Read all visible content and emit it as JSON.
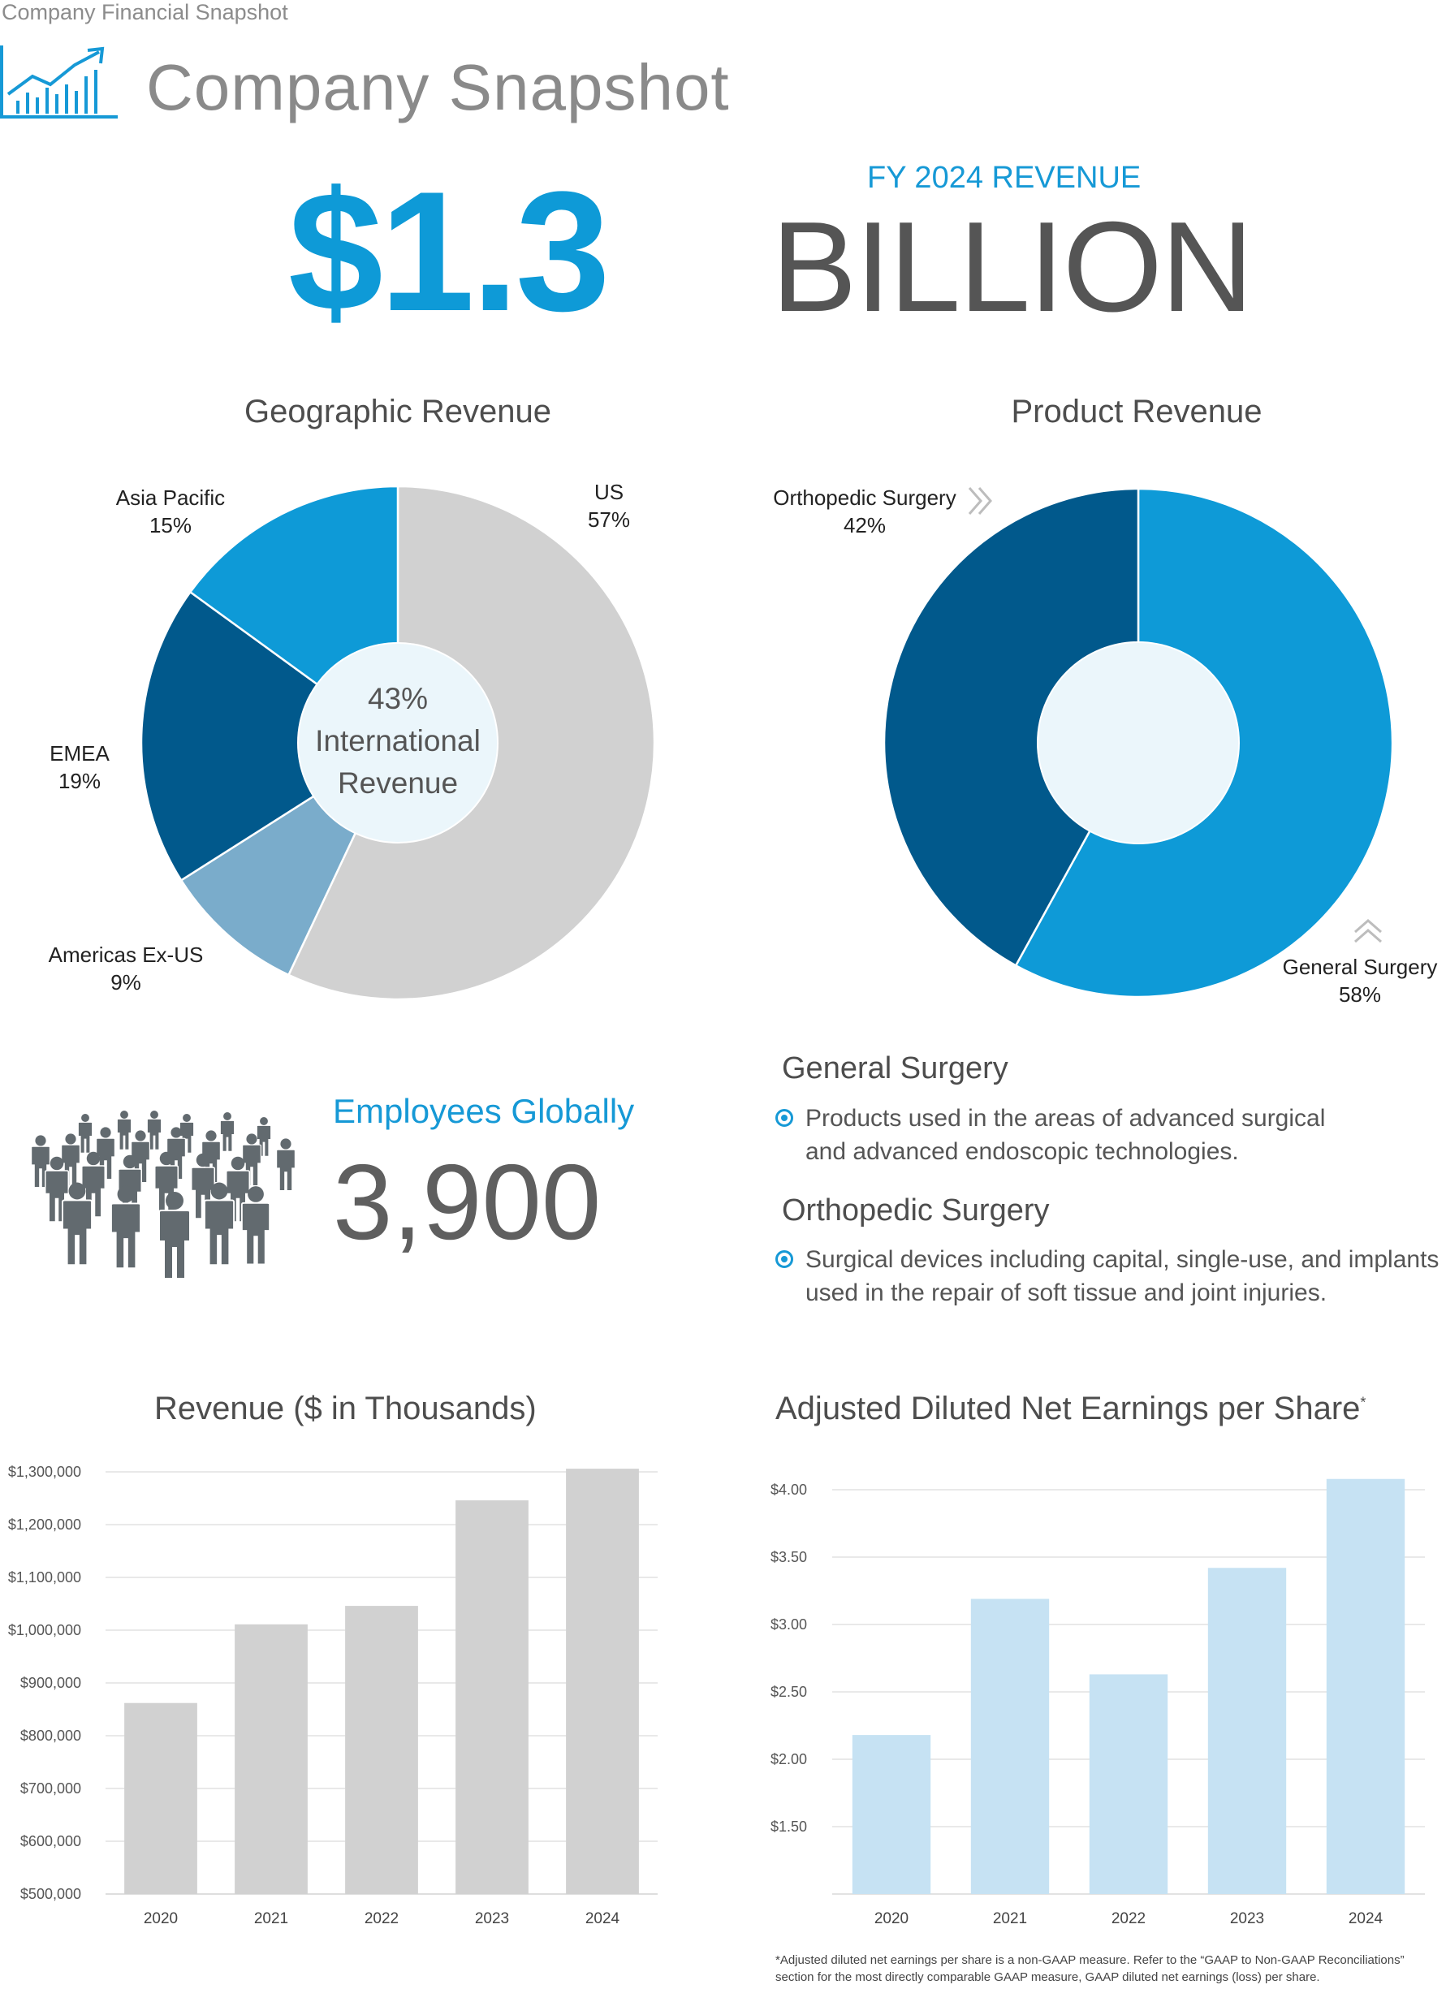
{
  "header": {
    "top_label": "Company Financial Snapshot",
    "title": "Company Snapshot",
    "icon": "bar-chart-trend-icon"
  },
  "headline": {
    "label": "FY 2024 REVENUE",
    "amount": "$1.3",
    "unit": "BILLION"
  },
  "colors": {
    "accent": "#0e9ad7",
    "dark_blue": "#01598c",
    "mid_blue": "#7aaccb",
    "gray": "#d1d1d1",
    "light_blue": "#c6e2f3",
    "center_fill": "#ebf6fb"
  },
  "employees": {
    "label": "Employees Globally",
    "value": "3,900",
    "icon": "people-group-icon"
  },
  "segments": [
    {
      "heading": "General Surgery",
      "lines": [
        "Products used in the areas of advanced surgical",
        "and advanced endoscopic technologies."
      ]
    },
    {
      "heading": "Orthopedic Surgery",
      "lines": [
        "Surgical devices including capital, single-use, and implants",
        "used in the repair of soft tissue and joint injuries."
      ]
    }
  ],
  "chart_data": [
    {
      "type": "pie",
      "title": "Geographic Revenue",
      "center_text": [
        "43%",
        "International",
        "Revenue"
      ],
      "slices": [
        {
          "name": "US",
          "value": 57,
          "label": "57%",
          "color": "#d1d1d1"
        },
        {
          "name": "Americas Ex-US",
          "value": 9,
          "label": "9%",
          "color": "#7aaccb"
        },
        {
          "name": "EMEA",
          "value": 19,
          "label": "19%",
          "color": "#01598c"
        },
        {
          "name": "Asia Pacific",
          "value": 15,
          "label": "15%",
          "color": "#0e9ad7"
        }
      ]
    },
    {
      "type": "pie",
      "title": "Product Revenue",
      "slices": [
        {
          "name": "General Surgery",
          "value": 58,
          "label": "58%",
          "color": "#0e9ad7"
        },
        {
          "name": "Orthopedic Surgery",
          "value": 42,
          "label": "42%",
          "color": "#01598c"
        }
      ]
    },
    {
      "type": "bar",
      "title": "Revenue ($ in Thousands)",
      "categories": [
        "2020",
        "2021",
        "2022",
        "2023",
        "2024"
      ],
      "values": [
        862000,
        1011000,
        1046000,
        1246000,
        1306000
      ],
      "ylim": [
        500000,
        1300000
      ],
      "yticks": [
        500000,
        600000,
        700000,
        800000,
        900000,
        1000000,
        1100000,
        1200000,
        1300000
      ],
      "ytick_labels": [
        "$500,000",
        "$600,000",
        "$700,000",
        "$800,000",
        "$900,000",
        "$1,000,000",
        "$1,100,000",
        "$1,200,000",
        "$1,300,000"
      ],
      "grid": true,
      "color": "#d1d1d1"
    },
    {
      "type": "bar",
      "title": "Adjusted Diluted Net Earnings per Share",
      "title_mark": "*",
      "categories": [
        "2020",
        "2021",
        "2022",
        "2023",
        "2024"
      ],
      "values": [
        2.18,
        3.19,
        2.63,
        3.42,
        4.08
      ],
      "ylim": [
        1.0,
        4.0
      ],
      "yticks": [
        1.5,
        2.0,
        2.5,
        3.0,
        3.5,
        4.0
      ],
      "ytick_labels": [
        "$1.50",
        "$2.00",
        "$2.50",
        "$3.00",
        "$3.50",
        "$4.00"
      ],
      "grid": true,
      "color": "#c6e2f3"
    }
  ],
  "footnote": [
    "*Adjusted diluted net earnings per share is a non-GAAP measure. Refer to the “GAAP to Non-GAAP Reconciliations”",
    "section for the most directly comparable GAAP measure, GAAP diluted net earnings (loss) per share."
  ]
}
